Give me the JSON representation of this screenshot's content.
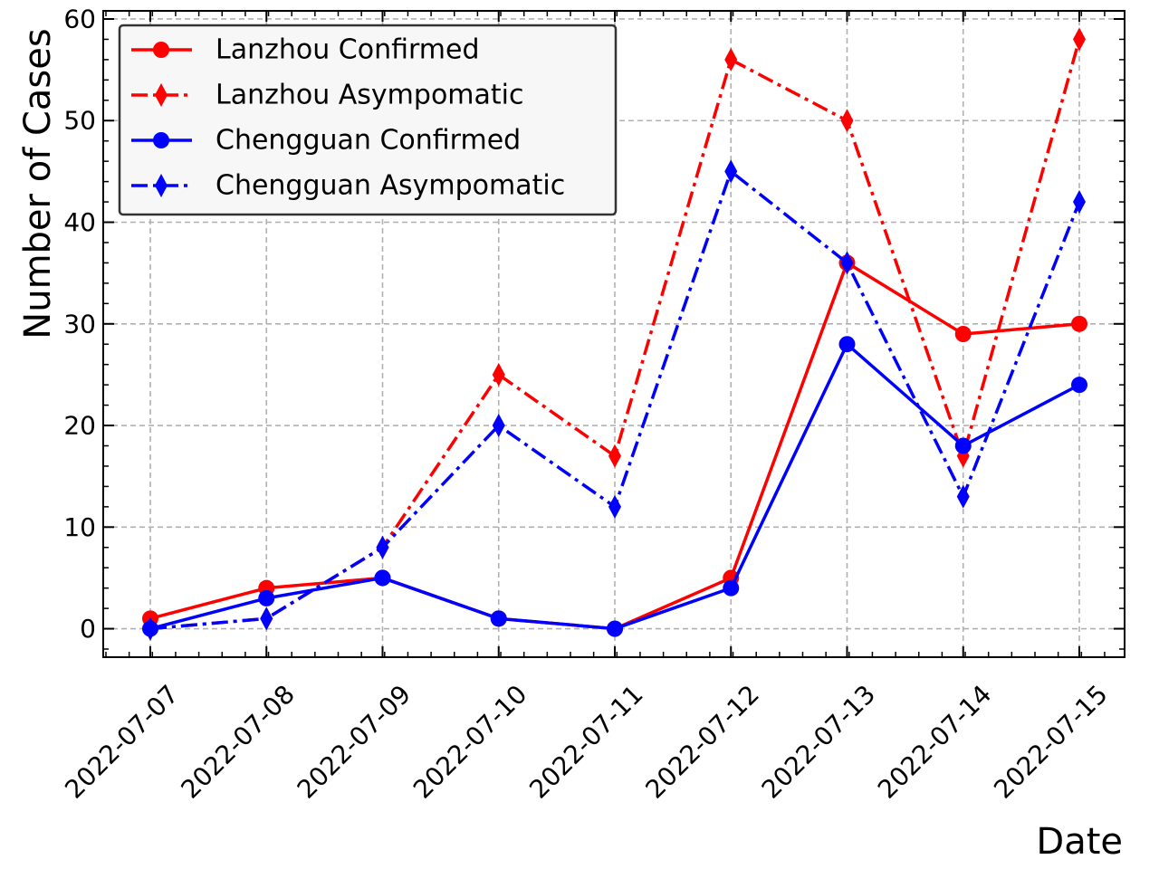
{
  "chart_data": {
    "type": "line",
    "title": "",
    "xlabel": "Date",
    "ylabel": "Number of Cases",
    "categories": [
      "2022-07-07",
      "2022-07-08",
      "2022-07-09",
      "2022-07-10",
      "2022-07-11",
      "2022-07-12",
      "2022-07-13",
      "2022-07-14",
      "2022-07-15"
    ],
    "ylim": [
      -2.8,
      60.8
    ],
    "yticks": [
      0,
      10,
      20,
      30,
      40,
      50,
      60
    ],
    "grid": true,
    "legend_position": "top-left",
    "series": [
      {
        "name": "Lanzhou Confirmed",
        "color": "#ff0000",
        "style": "solid",
        "marker": "circle",
        "values": [
          1,
          4,
          5,
          1,
          0,
          5,
          36,
          29,
          30
        ]
      },
      {
        "name": "Lanzhou Asympomatic",
        "color": "#ff0000",
        "style": "dashdot",
        "marker": "diamond",
        "values": [
          0,
          1,
          8,
          25,
          17,
          56,
          50,
          17,
          58
        ]
      },
      {
        "name": "Chengguan Confirmed",
        "color": "#0000ff",
        "style": "solid",
        "marker": "circle",
        "values": [
          0,
          3,
          5,
          1,
          0,
          4,
          28,
          18,
          24
        ]
      },
      {
        "name": "Chengguan Asympomatic",
        "color": "#0000ff",
        "style": "dashdot",
        "marker": "diamond",
        "values": [
          0,
          1,
          8,
          20,
          12,
          45,
          36,
          13,
          42
        ]
      }
    ]
  }
}
